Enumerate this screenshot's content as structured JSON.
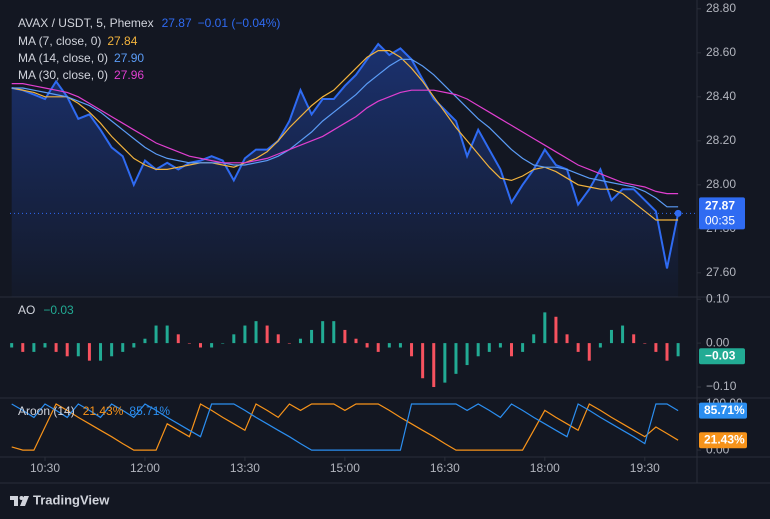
{
  "chart_data": [
    {
      "type": "line",
      "title": "AVAX / USDT, 5, Phemex",
      "change": "−0.01 (−0.04%)",
      "countdown": "00:35",
      "x": [
        600,
        610,
        620,
        630,
        640,
        650,
        660,
        670,
        680,
        690,
        700,
        710,
        720,
        730,
        740,
        750,
        760,
        770,
        780,
        790,
        800,
        810,
        820,
        830,
        840,
        850,
        860,
        870,
        880,
        890,
        900,
        910,
        920,
        930,
        940,
        950,
        960,
        970,
        980,
        990,
        1000,
        1010,
        1020,
        1030,
        1040,
        1050,
        1060,
        1070,
        1080,
        1090,
        1100,
        1110,
        1120,
        1130,
        1140,
        1150,
        1160,
        1170,
        1180,
        1190,
        1200
      ],
      "xlim": [
        598.5,
        1217
      ],
      "ylim": [
        27.49,
        28.84
      ],
      "yticks": [
        {
          "value": 27.6,
          "label": "27.60"
        },
        {
          "value": 27.8,
          "label": "27.80"
        },
        {
          "value": 28.0,
          "label": "28.00"
        },
        {
          "value": 28.2,
          "label": "28.20"
        },
        {
          "value": 28.4,
          "label": "28.40"
        },
        {
          "value": 28.6,
          "label": "28.60"
        },
        {
          "value": 28.8,
          "label": "28.80"
        }
      ],
      "last_line": true,
      "series": [
        {
          "color": "#2f6bf2",
          "area": true,
          "values": [
            28.44,
            28.43,
            28.41,
            28.39,
            28.47,
            28.4,
            28.3,
            28.32,
            28.25,
            28.17,
            28.13,
            28.0,
            28.11,
            28.07,
            28.1,
            28.07,
            28.1,
            28.11,
            28.13,
            28.11,
            28.02,
            28.12,
            28.16,
            28.16,
            28.2,
            28.29,
            28.43,
            28.32,
            28.39,
            28.39,
            28.45,
            28.5,
            28.57,
            28.64,
            28.59,
            28.62,
            28.57,
            28.48,
            28.39,
            28.34,
            28.29,
            28.13,
            28.25,
            28.16,
            28.07,
            27.92,
            28.0,
            28.07,
            28.16,
            28.09,
            28.07,
            27.91,
            27.98,
            28.07,
            27.93,
            27.98,
            27.98,
            27.93,
            27.88,
            27.62,
            27.87
          ]
        },
        {
          "name": "MA (7, close, 0)",
          "legend_value": "27.84",
          "color": "#f2b33d",
          "values": [
            28.44,
            28.43,
            28.42,
            28.4,
            28.4,
            28.4,
            28.37,
            28.33,
            28.28,
            28.22,
            28.17,
            28.12,
            28.09,
            28.07,
            28.07,
            28.08,
            28.09,
            28.1,
            28.1,
            28.09,
            28.08,
            28.1,
            28.12,
            28.15,
            28.2,
            28.26,
            28.31,
            28.36,
            28.4,
            28.43,
            28.48,
            28.53,
            28.58,
            28.61,
            28.61,
            28.58,
            28.53,
            28.47,
            28.4,
            28.33,
            28.26,
            28.2,
            28.14,
            28.08,
            28.03,
            28.02,
            28.04,
            28.07,
            28.08,
            28.06,
            28.03,
            28.0,
            27.99,
            27.98,
            27.98,
            27.96,
            27.92,
            27.88,
            27.84,
            27.84,
            27.84
          ]
        },
        {
          "name": "MA (14, close, 0)",
          "legend_value": "27.90",
          "color": "#5b9cf6",
          "values": [
            28.44,
            28.44,
            28.43,
            28.42,
            28.41,
            28.4,
            28.38,
            28.36,
            28.33,
            28.29,
            28.25,
            28.21,
            28.17,
            28.14,
            28.12,
            28.11,
            28.1,
            28.1,
            28.1,
            28.1,
            28.09,
            28.09,
            28.1,
            28.11,
            28.13,
            28.16,
            28.2,
            28.24,
            28.29,
            28.33,
            28.37,
            28.41,
            28.46,
            28.5,
            28.54,
            28.57,
            28.57,
            28.54,
            28.5,
            28.45,
            28.4,
            28.35,
            28.3,
            28.26,
            28.21,
            28.16,
            28.12,
            28.09,
            28.08,
            28.08,
            28.07,
            28.05,
            28.03,
            28.02,
            28.01,
            28.0,
            27.99,
            27.97,
            27.94,
            27.9,
            27.9
          ]
        },
        {
          "name": "MA (30, close, 0)",
          "legend_value": "27.96",
          "color": "#e03fd0",
          "values": [
            28.46,
            28.46,
            28.45,
            28.44,
            28.43,
            28.42,
            28.4,
            28.37,
            28.34,
            28.31,
            28.28,
            28.25,
            28.22,
            28.19,
            28.17,
            28.15,
            28.13,
            28.12,
            28.11,
            28.1,
            28.1,
            28.1,
            28.11,
            28.12,
            28.14,
            28.16,
            28.18,
            28.2,
            28.22,
            28.25,
            28.28,
            28.31,
            28.35,
            28.38,
            28.4,
            28.42,
            28.43,
            28.43,
            28.43,
            28.42,
            28.41,
            28.39,
            28.36,
            28.33,
            28.3,
            28.27,
            28.24,
            28.21,
            28.18,
            28.15,
            28.12,
            28.09,
            28.07,
            28.05,
            28.03,
            28.01,
            28.0,
            27.99,
            27.97,
            27.96,
            27.96
          ]
        }
      ]
    },
    {
      "type": "bar",
      "title": "AO",
      "legend_value": "−0.03",
      "up_color": "#22ab94",
      "down_color": "#f7525f",
      "x": [
        600,
        610,
        620,
        630,
        640,
        650,
        660,
        670,
        680,
        690,
        700,
        710,
        720,
        730,
        740,
        750,
        760,
        770,
        780,
        790,
        800,
        810,
        820,
        830,
        840,
        850,
        860,
        870,
        880,
        890,
        900,
        910,
        920,
        930,
        940,
        950,
        960,
        970,
        980,
        990,
        1000,
        1010,
        1020,
        1030,
        1040,
        1050,
        1060,
        1070,
        1080,
        1090,
        1100,
        1110,
        1120,
        1130,
        1140,
        1150,
        1160,
        1170,
        1180,
        1190,
        1200
      ],
      "xlim": [
        598.5,
        1217
      ],
      "ylim": [
        -0.125,
        0.105
      ],
      "yticks": [
        {
          "value": -0.1,
          "label": "−0.10"
        },
        {
          "value": 0,
          "label": "0.00"
        },
        {
          "value": 0.1,
          "label": "0.10"
        }
      ],
      "values": [
        -0.01,
        -0.02,
        -0.02,
        -0.01,
        -0.02,
        -0.03,
        -0.03,
        -0.04,
        -0.04,
        -0.03,
        -0.02,
        -0.01,
        0.01,
        0.04,
        0.04,
        0.02,
        0.0,
        -0.01,
        -0.01,
        0.0,
        0.02,
        0.04,
        0.05,
        0.04,
        0.02,
        0.0,
        0.01,
        0.03,
        0.05,
        0.05,
        0.03,
        0.01,
        -0.01,
        -0.02,
        -0.01,
        -0.01,
        -0.03,
        -0.08,
        -0.1,
        -0.09,
        -0.07,
        -0.05,
        -0.03,
        -0.02,
        -0.01,
        -0.03,
        -0.02,
        0.02,
        0.07,
        0.06,
        0.02,
        -0.02,
        -0.04,
        -0.01,
        0.03,
        0.04,
        0.02,
        0.0,
        -0.02,
        -0.04,
        -0.03
      ]
    },
    {
      "type": "line",
      "title": "Aroon (14)",
      "x": [
        600,
        610,
        620,
        630,
        640,
        650,
        660,
        670,
        680,
        690,
        700,
        710,
        720,
        730,
        740,
        750,
        760,
        770,
        780,
        790,
        800,
        810,
        820,
        830,
        840,
        850,
        860,
        870,
        880,
        890,
        900,
        910,
        920,
        930,
        940,
        950,
        960,
        970,
        980,
        990,
        1000,
        1010,
        1020,
        1030,
        1040,
        1050,
        1060,
        1070,
        1080,
        1090,
        1100,
        1110,
        1120,
        1130,
        1140,
        1150,
        1160,
        1170,
        1180,
        1190,
        1200
      ],
      "xlim": [
        598.5,
        1217
      ],
      "ylim": [
        -15,
        113
      ],
      "yticks": [
        {
          "value": 0,
          "label": "0.00"
        },
        {
          "value": 100,
          "label": "100.00"
        }
      ],
      "xticks": [
        {
          "value": 630,
          "label": "10:30"
        },
        {
          "value": 720,
          "label": "12:00"
        },
        {
          "value": 810,
          "label": "13:30"
        },
        {
          "value": 900,
          "label": "15:00"
        },
        {
          "value": 990,
          "label": "16:30"
        },
        {
          "value": 1080,
          "label": "18:00"
        },
        {
          "value": 1170,
          "label": "19:30"
        }
      ],
      "series": [
        {
          "legend_value": "21.43%",
          "color": "#f7931a",
          "values": [
            7,
            0,
            0,
            50,
            100,
            86,
            71,
            57,
            43,
            29,
            14,
            0,
            0,
            0,
            57,
            43,
            29,
            100,
            86,
            71,
            57,
            43,
            100,
            86,
            71,
            100,
            86,
            100,
            100,
            100,
            86,
            100,
            100,
            100,
            86,
            71,
            57,
            43,
            29,
            14,
            0,
            0,
            0,
            0,
            0,
            0,
            0,
            43,
            86,
            71,
            57,
            43,
            100,
            86,
            71,
            57,
            43,
            29,
            50,
            36,
            21.43
          ]
        },
        {
          "legend_value": "85.71%",
          "color": "#2b8ef0",
          "values": [
            100,
            86,
            71,
            100,
            86,
            71,
            100,
            86,
            71,
            100,
            86,
            71,
            100,
            86,
            71,
            57,
            43,
            29,
            100,
            100,
            100,
            86,
            71,
            57,
            43,
            29,
            14,
            0,
            0,
            0,
            0,
            0,
            0,
            0,
            0,
            0,
            100,
            100,
            100,
            100,
            100,
            86,
            100,
            86,
            71,
            100,
            86,
            71,
            57,
            43,
            29,
            100,
            86,
            71,
            57,
            43,
            29,
            14,
            100,
            100,
            85.71
          ]
        }
      ]
    }
  ],
  "footer": {
    "brand": "TradingView"
  }
}
